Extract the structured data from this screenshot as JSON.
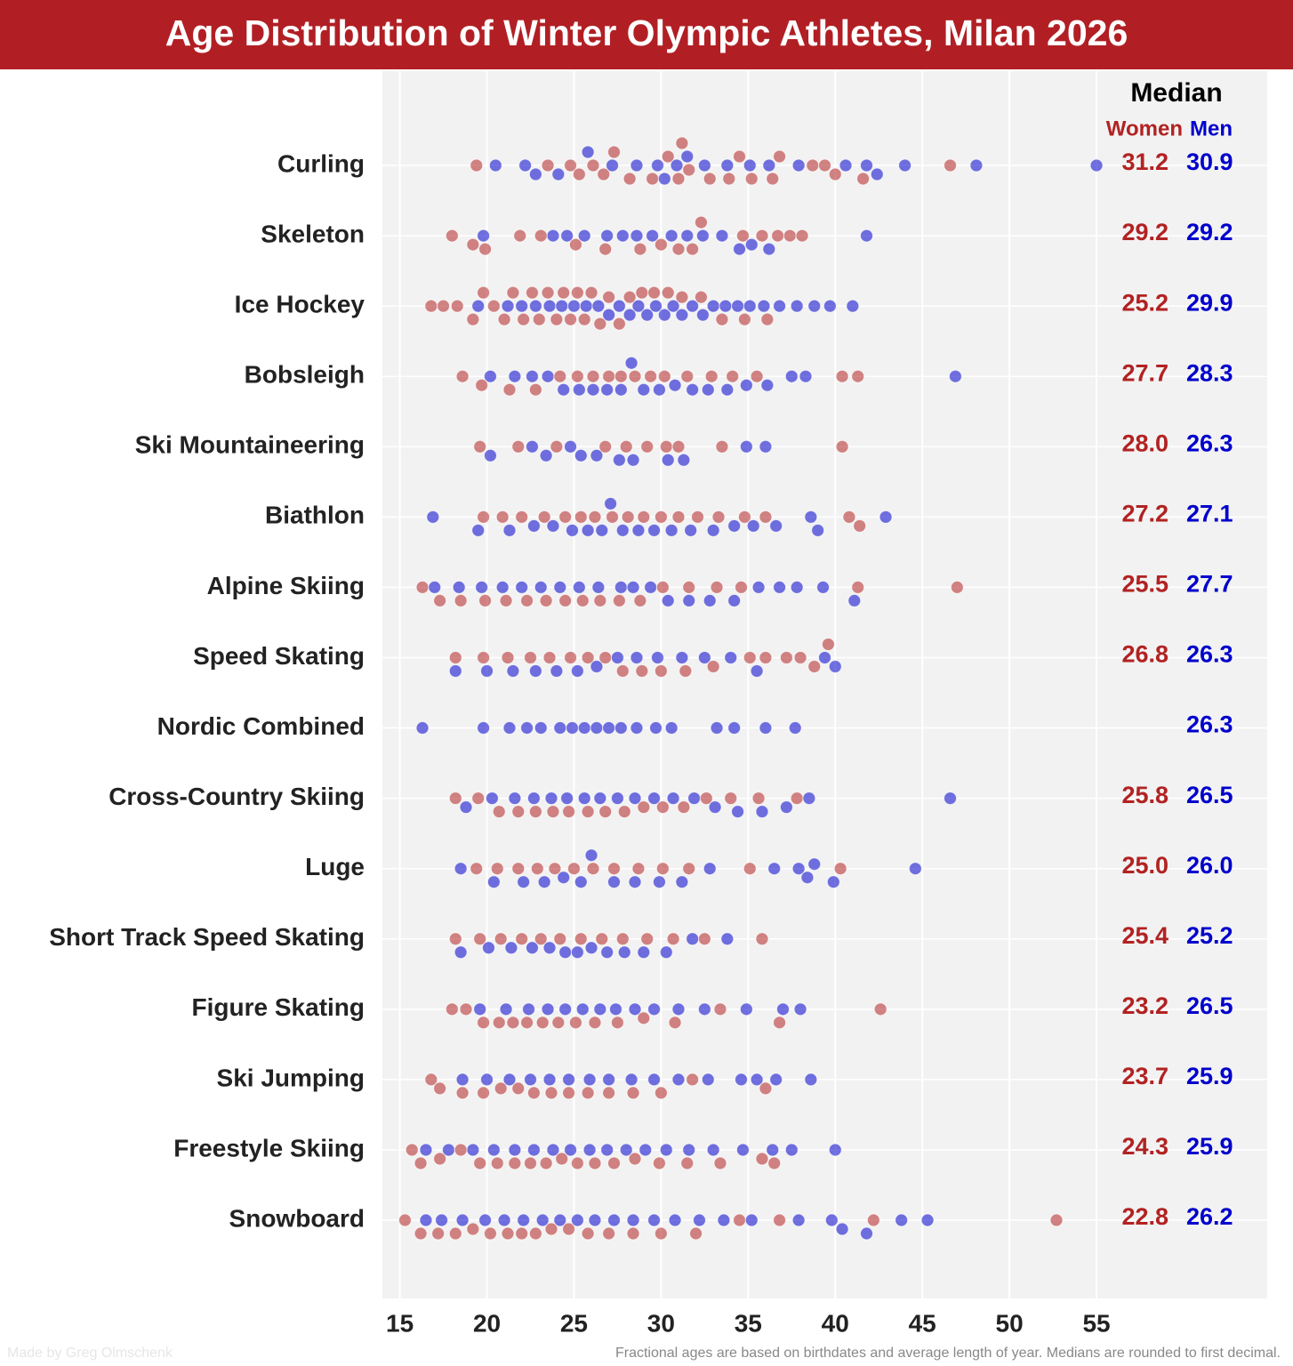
{
  "chart_data": {
    "type": "beeswarm",
    "title": "Age Distribution of Winter Olympic Athletes, Milan 2026",
    "median_title": "Median",
    "footnote": "Fractional ages are based on birthdates and average length of year. Medians are rounded to first decimal.",
    "credit": "Made by Greg Olmschenk",
    "categories": [
      "Curling",
      "Skeleton",
      "Ice Hockey",
      "Bobsleigh",
      "Ski Mountaineering",
      "Biathlon",
      "Alpine Skiing",
      "Speed Skating",
      "Nordic Combined",
      "Cross-Country Skiing",
      "Luge",
      "Short Track Speed Skating",
      "Figure Skating",
      "Ski Jumping",
      "Freestyle Skiing",
      "Snowboard"
    ],
    "xlim": [
      14,
      64.8
    ],
    "xticks": [
      15,
      20,
      25,
      30,
      35,
      40,
      45,
      50,
      55
    ],
    "grid": true,
    "series": [
      {
        "name": "Women",
        "color": "#b22222",
        "medians": [
          31.2,
          29.2,
          25.2,
          27.7,
          28.0,
          27.2,
          25.5,
          26.8,
          null,
          25.8,
          25.0,
          25.4,
          23.2,
          23.7,
          24.3,
          22.8
        ],
        "median_labels": [
          "31.2",
          "29.2",
          "25.2",
          "27.7",
          "28.0",
          "27.2",
          "25.5",
          "26.8",
          null,
          "25.8",
          "25.0",
          "25.4",
          "23.2",
          "23.7",
          "24.3",
          "22.8"
        ],
        "values": [
          [
            19.4,
            23.5,
            24.8,
            25.3,
            26.1,
            26.7,
            27.3,
            28.2,
            29.5,
            30.4,
            31.0,
            31.2,
            31.6,
            32.8,
            33.9,
            34.5,
            35.2,
            36.4,
            36.8,
            38.7,
            39.4,
            40.0,
            41.6,
            46.6
          ],
          [
            18.0,
            19.2,
            19.9,
            21.9,
            23.1,
            25.1,
            26.8,
            28.8,
            30.0,
            31.0,
            31.8,
            32.3,
            34.7,
            35.8,
            36.7,
            37.4,
            38.1
          ],
          [
            16.8,
            17.5,
            18.3,
            19.2,
            19.8,
            20.4,
            21.0,
            21.5,
            22.1,
            22.6,
            23.0,
            23.5,
            24.0,
            24.4,
            24.8,
            25.2,
            25.6,
            26.0,
            26.5,
            27.0,
            27.6,
            28.2,
            28.9,
            29.6,
            30.4,
            31.2,
            32.3,
            33.5,
            34.8,
            36.1
          ],
          [
            18.6,
            19.7,
            21.3,
            22.8,
            24.2,
            25.2,
            26.1,
            27.0,
            27.7,
            28.5,
            29.4,
            30.2,
            31.5,
            32.9,
            34.1,
            35.5,
            40.4,
            41.3
          ],
          [
            19.6,
            21.8,
            24.0,
            26.8,
            28.0,
            29.2,
            30.3,
            31.0,
            33.5,
            40.4
          ],
          [
            19.8,
            20.9,
            22.0,
            23.3,
            24.5,
            25.4,
            26.2,
            27.2,
            28.1,
            29.0,
            30.0,
            31.0,
            32.1,
            33.3,
            34.8,
            36.0,
            40.8,
            41.4
          ],
          [
            16.3,
            17.3,
            18.5,
            19.9,
            21.1,
            22.3,
            23.4,
            24.5,
            25.5,
            26.5,
            27.6,
            28.8,
            30.1,
            31.6,
            33.2,
            34.6,
            41.3,
            47.0
          ],
          [
            18.2,
            19.8,
            21.2,
            22.5,
            23.6,
            24.8,
            25.8,
            26.8,
            27.8,
            28.9,
            30.0,
            31.4,
            33.0,
            35.1,
            36.0,
            37.2,
            38.0,
            38.8,
            39.6
          ],
          [],
          [
            18.2,
            19.5,
            20.7,
            21.8,
            22.8,
            23.8,
            24.7,
            25.8,
            26.8,
            27.9,
            29.0,
            30.1,
            31.3,
            32.6,
            34.0,
            35.6,
            37.8
          ],
          [
            19.4,
            20.6,
            21.8,
            22.9,
            23.9,
            25.0,
            26.1,
            27.3,
            28.7,
            30.1,
            31.6,
            35.1,
            40.3
          ],
          [
            18.2,
            19.6,
            20.8,
            22.0,
            23.1,
            24.2,
            25.4,
            26.6,
            27.8,
            29.2,
            30.7,
            32.5,
            35.8
          ],
          [
            18.0,
            18.8,
            19.8,
            20.7,
            21.5,
            22.3,
            23.2,
            24.1,
            25.1,
            26.2,
            27.5,
            29.0,
            30.8,
            33.4,
            36.8,
            42.6
          ],
          [
            16.8,
            17.3,
            18.6,
            19.8,
            20.8,
            21.8,
            22.7,
            23.7,
            24.7,
            25.8,
            27.0,
            28.4,
            30.0,
            31.8,
            36.0
          ],
          [
            15.7,
            16.2,
            17.3,
            18.5,
            19.6,
            20.6,
            21.6,
            22.5,
            23.4,
            24.3,
            25.2,
            26.2,
            27.3,
            28.5,
            29.9,
            31.5,
            33.4,
            35.8,
            36.5
          ],
          [
            15.3,
            16.2,
            17.2,
            18.2,
            19.2,
            20.2,
            21.2,
            22.0,
            22.8,
            23.7,
            24.7,
            25.8,
            27.0,
            28.4,
            30.0,
            32.0,
            34.5,
            36.8,
            42.2,
            52.7
          ]
        ]
      },
      {
        "name": "Men",
        "color": "#0000cc",
        "medians": [
          30.9,
          29.2,
          29.9,
          28.3,
          26.3,
          27.1,
          27.7,
          26.3,
          26.3,
          26.5,
          26.0,
          25.2,
          26.5,
          25.9,
          25.9,
          26.2
        ],
        "median_labels": [
          "30.9",
          "29.2",
          "29.9",
          "28.3",
          "26.3",
          "27.1",
          "27.7",
          "26.3",
          "26.3",
          "26.5",
          "26.0",
          "25.2",
          "26.5",
          "25.9",
          "25.9",
          "26.2"
        ],
        "values": [
          [
            20.5,
            22.2,
            22.8,
            24.1,
            25.8,
            27.2,
            28.6,
            29.8,
            30.2,
            30.9,
            31.5,
            32.5,
            33.8,
            35.1,
            36.2,
            37.9,
            40.6,
            41.8,
            42.4,
            44.0,
            48.1,
            55.0
          ],
          [
            19.8,
            23.8,
            24.6,
            25.6,
            26.9,
            27.8,
            28.6,
            29.5,
            30.6,
            31.5,
            32.4,
            33.5,
            34.5,
            35.2,
            36.2,
            41.8
          ],
          [
            19.5,
            21.2,
            22.0,
            22.8,
            23.6,
            24.3,
            25.0,
            25.7,
            26.4,
            27.0,
            27.6,
            28.2,
            28.7,
            29.2,
            29.7,
            30.2,
            30.7,
            31.2,
            31.8,
            32.4,
            33.0,
            33.7,
            34.4,
            35.1,
            35.9,
            36.8,
            37.8,
            38.8,
            39.7,
            41.0
          ],
          [
            20.2,
            21.6,
            22.6,
            23.5,
            24.4,
            25.3,
            26.1,
            26.9,
            27.7,
            28.3,
            29.0,
            29.9,
            30.8,
            31.8,
            32.7,
            33.8,
            34.9,
            36.1,
            37.5,
            38.3,
            46.9
          ],
          [
            20.2,
            22.6,
            23.4,
            24.8,
            25.4,
            26.3,
            27.6,
            28.4,
            30.4,
            31.3,
            34.9,
            36.0
          ],
          [
            16.9,
            19.5,
            21.3,
            22.7,
            23.8,
            24.9,
            25.8,
            26.6,
            27.1,
            27.8,
            28.7,
            29.6,
            30.6,
            31.7,
            33.0,
            34.2,
            35.3,
            36.6,
            38.6,
            39.0,
            42.9
          ],
          [
            17.0,
            18.4,
            19.7,
            20.9,
            22.0,
            23.1,
            24.2,
            25.3,
            26.4,
            27.7,
            28.4,
            29.4,
            30.4,
            31.6,
            32.8,
            34.2,
            35.6,
            36.8,
            37.8,
            39.3,
            41.1
          ],
          [
            18.2,
            20.0,
            21.5,
            22.8,
            24.0,
            25.2,
            26.3,
            27.5,
            28.6,
            29.8,
            31.2,
            32.5,
            34.0,
            35.5,
            39.4,
            40.0
          ],
          [
            16.3,
            19.8,
            21.3,
            22.3,
            23.1,
            24.2,
            24.9,
            25.6,
            26.3,
            27.0,
            27.7,
            28.6,
            29.7,
            30.6,
            33.2,
            34.2,
            36.0,
            37.7
          ],
          [
            18.8,
            20.3,
            21.6,
            22.7,
            23.7,
            24.6,
            25.6,
            26.5,
            27.5,
            28.5,
            29.6,
            30.7,
            31.9,
            33.1,
            34.4,
            35.8,
            37.2,
            38.5,
            46.6
          ],
          [
            18.5,
            20.4,
            22.1,
            23.3,
            24.4,
            25.4,
            26.0,
            27.3,
            28.5,
            29.9,
            31.2,
            32.8,
            36.5,
            37.9,
            38.4,
            38.8,
            39.9,
            44.6
          ],
          [
            18.5,
            20.1,
            21.4,
            22.6,
            23.6,
            24.5,
            25.2,
            26.0,
            26.9,
            27.9,
            29.0,
            30.3,
            31.8,
            33.8
          ],
          [
            19.6,
            21.1,
            22.4,
            23.5,
            24.5,
            25.5,
            26.5,
            27.4,
            28.5,
            29.6,
            31.0,
            32.5,
            34.9,
            37.0,
            38.0
          ],
          [
            18.6,
            20.0,
            21.3,
            22.5,
            23.6,
            24.7,
            25.9,
            27.0,
            28.3,
            29.6,
            31.0,
            32.7,
            34.6,
            35.5,
            36.6,
            38.6
          ],
          [
            16.5,
            17.8,
            19.2,
            20.4,
            21.6,
            22.7,
            23.8,
            24.8,
            25.9,
            26.9,
            28.0,
            29.1,
            30.3,
            31.6,
            33.0,
            34.7,
            36.4,
            37.5,
            40.0
          ],
          [
            16.5,
            17.4,
            18.6,
            19.9,
            21.0,
            22.1,
            23.2,
            24.2,
            25.2,
            26.2,
            27.3,
            28.4,
            29.6,
            30.8,
            32.2,
            33.6,
            35.2,
            37.9,
            39.8,
            40.4,
            41.8,
            43.8,
            45.3
          ]
        ]
      }
    ]
  }
}
